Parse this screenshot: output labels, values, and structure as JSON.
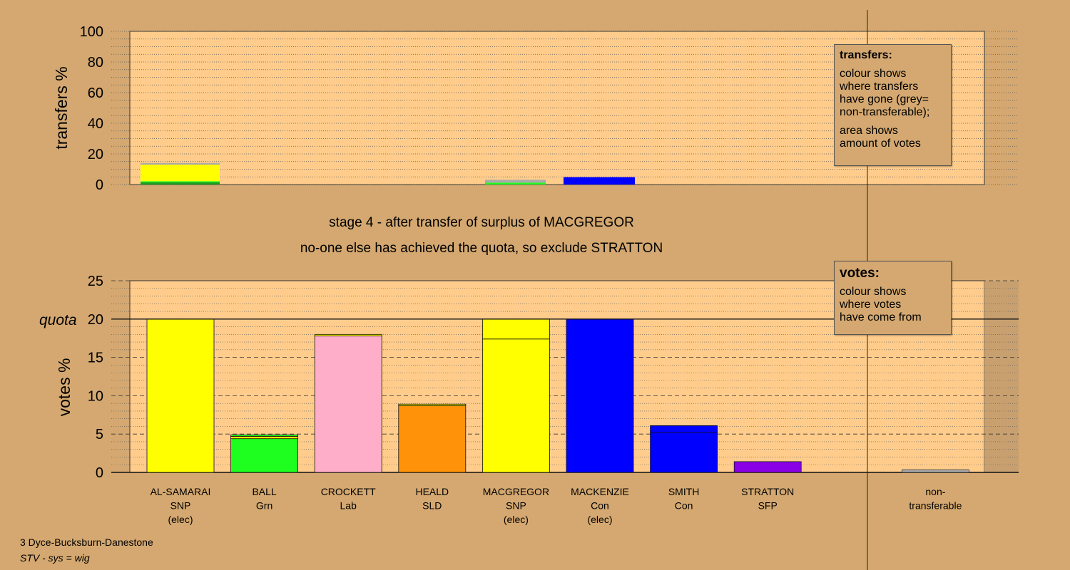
{
  "chart_data": {
    "type": "bar",
    "stage_title": "stage 4 - after transfer of surplus of MACGREGOR",
    "stage_subtitle": "no-one else has achieved the quota, so exclude STRATTON",
    "top_panel": {
      "ylabel": "transfers %",
      "ylim": [
        0,
        100
      ],
      "yticks": [
        0,
        20,
        40,
        60,
        80,
        100
      ],
      "bars": [
        {
          "candidate": "AL-SAMARAI",
          "segments": [
            {
              "value": 1.5,
              "color": "#1a9e1a"
            },
            {
              "value": 0.7,
              "color": "#1fff1f"
            },
            {
              "value": 10.8,
              "color": "#ffff00"
            },
            {
              "value": 1.0,
              "color": "#aaaaaa"
            }
          ]
        },
        {
          "candidate": "MACGREGOR",
          "segments": [
            {
              "value": 1.2,
              "color": "#1fff1f"
            },
            {
              "value": 1.9,
              "color": "#aaaaaa"
            }
          ]
        },
        {
          "candidate": "MACKENZIE",
          "segments": [
            {
              "value": 4.8,
              "color": "#0000ff"
            }
          ]
        }
      ]
    },
    "bottom_panel": {
      "ylabel": "votes %",
      "ylim": [
        0,
        25
      ],
      "yticks": [
        0,
        5,
        10,
        15,
        20,
        25
      ],
      "quota_label": "quota",
      "quota": 20,
      "categories": [
        {
          "name": "AL-SAMARAI",
          "party": "SNP",
          "note": "(elec)"
        },
        {
          "name": "BALL",
          "party": "Grn",
          "note": ""
        },
        {
          "name": "CROCKETT",
          "party": "Lab",
          "note": ""
        },
        {
          "name": "HEALD",
          "party": "SLD",
          "note": ""
        },
        {
          "name": "MACGREGOR",
          "party": "SNP",
          "note": "(elec)"
        },
        {
          "name": "MACKENZIE",
          "party": "Con",
          "note": "(elec)"
        },
        {
          "name": "SMITH",
          "party": "Con",
          "note": ""
        },
        {
          "name": "STRATTON",
          "party": "SFP",
          "note": ""
        },
        {
          "name": "",
          "party": "",
          "note": ""
        },
        {
          "name": "non-",
          "party": "transferable",
          "note": ""
        }
      ],
      "bars": [
        {
          "candidate": "AL-SAMARAI",
          "segments": [
            {
              "value": 20.0,
              "color": "#ffff00"
            }
          ]
        },
        {
          "candidate": "BALL",
          "segments": [
            {
              "value": 4.4,
              "color": "#1fff1f"
            },
            {
              "value": 0.3,
              "color": "#ffff00"
            },
            {
              "value": 0.2,
              "color": "#1fff1f"
            }
          ]
        },
        {
          "candidate": "CROCKETT",
          "segments": [
            {
              "value": 17.8,
              "color": "#ffaec9"
            },
            {
              "value": 0.2,
              "color": "#ffff00"
            }
          ]
        },
        {
          "candidate": "HEALD",
          "segments": [
            {
              "value": 8.7,
              "color": "#ff9208"
            },
            {
              "value": 0.2,
              "color": "#ffff00"
            }
          ]
        },
        {
          "candidate": "MACGREGOR",
          "segments": [
            {
              "value": 17.4,
              "color": "#ffff00"
            },
            {
              "value": 2.6,
              "color": "#ffff00"
            }
          ]
        },
        {
          "candidate": "MACKENZIE",
          "segments": [
            {
              "value": 20.0,
              "color": "#0000ff"
            }
          ]
        },
        {
          "candidate": "SMITH",
          "segments": [
            {
              "value": 5.2,
              "color": "#0000ff"
            },
            {
              "value": 0.9,
              "color": "#0000ff"
            }
          ]
        },
        {
          "candidate": "STRATTON",
          "segments": [
            {
              "value": 1.4,
              "color": "#8a00e6"
            }
          ]
        },
        {
          "candidate": "",
          "segments": []
        },
        {
          "candidate": "non-transferable",
          "segments": [
            {
              "value": 0.35,
              "color": "#aaaaaa"
            }
          ]
        }
      ]
    },
    "colors": {
      "plot_bg": "#ffcc8c",
      "page_bg": "#d4a870",
      "shade": "#c8a070"
    }
  },
  "legend_transfers": {
    "title": "transfers:",
    "line1": "colour shows",
    "line2": "where transfers",
    "line3": "have gone (grey=",
    "line4": "non-transferable);",
    "line5": "area shows",
    "line6": "amount of votes"
  },
  "legend_votes": {
    "title": "votes:",
    "line1": "colour shows",
    "line2": "where votes",
    "line3": "have come from"
  },
  "footer": {
    "constituency": "3 Dyce-Bucksburn-Danestone",
    "system": "STV - sys = wig"
  }
}
